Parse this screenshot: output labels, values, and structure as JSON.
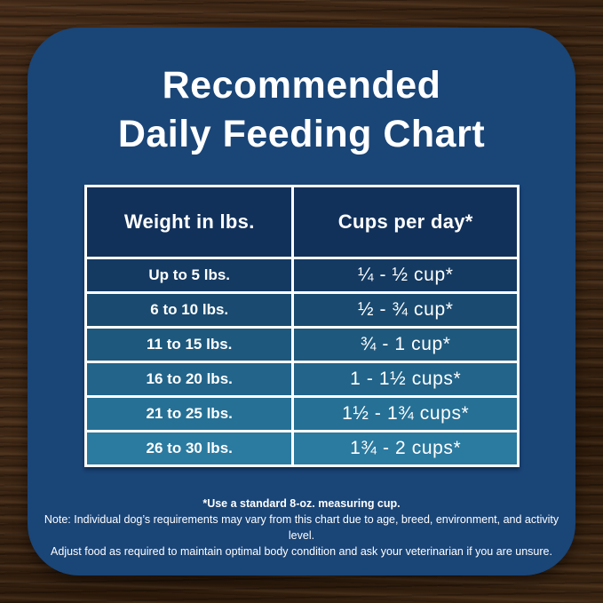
{
  "chart_data": {
    "type": "table",
    "title": "Recommended Daily Feeding Chart",
    "title_lines": [
      "Recommended",
      "Daily Feeding Chart"
    ],
    "columns": [
      "Weight in lbs.",
      "Cups per day*"
    ],
    "rows": [
      {
        "weight": "Up to 5 lbs.",
        "cups": "¼ - ½ cup*",
        "bg": "#143a62"
      },
      {
        "weight": "6 to 10 lbs.",
        "cups": "½ - ¾ cup*",
        "bg": "#1a4a6f"
      },
      {
        "weight": "11 to 15 lbs.",
        "cups": "¾ - 1 cup*",
        "bg": "#1e587d"
      },
      {
        "weight": "16 to 20 lbs.",
        "cups": "1 - 1½ cups*",
        "bg": "#22648a"
      },
      {
        "weight": "21 to 25 lbs.",
        "cups": "1½ - 1¾ cups*",
        "bg": "#267095"
      },
      {
        "weight": "26 to 30 lbs.",
        "cups": "1¾ - 2 cups*",
        "bg": "#2b7aa0"
      }
    ],
    "footnotes": [
      "*Use a standard 8-oz. measuring cup.",
      "Note: Individual dog’s requirements may vary from this chart due to age, breed, environment, and activity level.",
      "Adjust food as required to maintain optimal body condition and ask your veterinarian if you are unsure."
    ],
    "layout_hints": {
      "legend": "none",
      "grid": "white 3px cell borders",
      "header_row": true
    }
  },
  "colors": {
    "card_background": "#1a4577",
    "header_background": "#12315a",
    "table_border": "#ffffff",
    "text": "#ffffff"
  }
}
